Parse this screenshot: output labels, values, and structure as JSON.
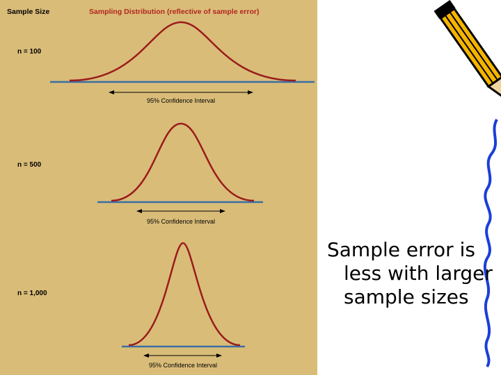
{
  "figure": {
    "header": {
      "left": "Sample Size",
      "right": "Sampling Distribution (reflective of sample error)"
    },
    "panels": [
      {
        "label": "n = 100",
        "interval": "95% Confidence Interval"
      },
      {
        "label": "n = 500",
        "interval": "95% Confidence Interval"
      },
      {
        "label": "n = 1,000",
        "interval": "95% Confidence Interval"
      }
    ]
  },
  "caption": "Sample error is less with larger sample sizes"
}
